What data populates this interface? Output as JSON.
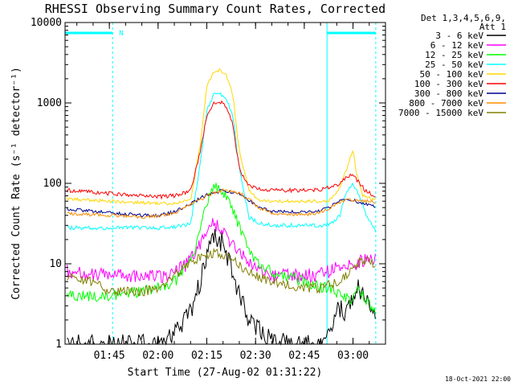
{
  "chart_data": {
    "type": "line",
    "title": "RHESSI Observing Summary Count Rates, Corrected",
    "xlabel": "Start Time (27-Aug-02 01:31:22)",
    "ylabel": "Corrected Count Rate (s⁻¹ detector⁻¹)",
    "x_unit": "UT time (HH:MM) on 27-Aug-02",
    "xlim": [
      "01:31:22",
      "03:10:00"
    ],
    "ylim": [
      1,
      10000
    ],
    "yscale": "log",
    "x_ticks": [
      "01:45",
      "02:00",
      "02:15",
      "02:30",
      "02:45",
      "03:00"
    ],
    "y_ticks": [
      {
        "value": 1,
        "label": "1"
      },
      {
        "value": 10,
        "label": "10"
      },
      {
        "value": 100,
        "label": "100"
      },
      {
        "value": 1000,
        "label": "1000"
      },
      {
        "value": 10000,
        "label": "10000"
      }
    ],
    "legend": {
      "placement": "right",
      "header": [
        "Det 1,3,4,5,6,9,",
        "Att 1"
      ]
    },
    "annotations": {
      "night_marker": "N",
      "timestamp": "18-Oct-2021 22:00",
      "data_gaps": [
        {
          "start": "01:31:22",
          "end": "01:46:00"
        },
        {
          "start": "02:52:00",
          "end": "03:07:00"
        }
      ]
    },
    "series": [
      {
        "name": "3 - 6 keV",
        "color": "#000000",
        "x": [
          "01:32",
          "01:45",
          "02:00",
          "02:05",
          "02:10",
          "02:13",
          "02:15",
          "02:16",
          "02:17",
          "02:20",
          "02:22",
          "02:25",
          "02:28",
          "02:31",
          "02:34",
          "02:40",
          "02:50",
          "02:53",
          "02:55",
          "02:58",
          "03:00",
          "03:02",
          "03:05",
          "03:07"
        ],
        "y": [
          1,
          1,
          1,
          1.4,
          2.5,
          6,
          14,
          20,
          22,
          18,
          10,
          4,
          2,
          1.5,
          1.2,
          1,
          1,
          1.4,
          3,
          2.5,
          4,
          5,
          3,
          2.5
        ]
      },
      {
        "name": "6 - 12 keV",
        "color": "#ff00ff",
        "x": [
          "01:32",
          "01:45",
          "01:55",
          "02:00",
          "02:05",
          "02:10",
          "02:13",
          "02:15",
          "02:16",
          "02:17",
          "02:19",
          "02:22",
          "02:25",
          "02:28",
          "02:31",
          "02:35",
          "02:45",
          "02:50",
          "02:53",
          "02:55",
          "03:00",
          "03:05",
          "03:07"
        ],
        "y": [
          8,
          7,
          7,
          7,
          7.5,
          11,
          18,
          26,
          30,
          32,
          28,
          20,
          14,
          10,
          8,
          7,
          7,
          7.5,
          8,
          9,
          10,
          11,
          11
        ]
      },
      {
        "name": "12 - 25 keV",
        "color": "#00ff00",
        "x": [
          "01:32",
          "01:45",
          "01:55",
          "02:00",
          "02:05",
          "02:08",
          "02:11",
          "02:13",
          "02:15",
          "02:17",
          "02:19",
          "02:22",
          "02:25",
          "02:28",
          "02:31",
          "02:35",
          "02:45",
          "02:50",
          "02:53",
          "02:56",
          "03:00",
          "03:02",
          "03:05",
          "03:07"
        ],
        "y": [
          4,
          4,
          4.5,
          5,
          6,
          8,
          14,
          30,
          60,
          90,
          85,
          60,
          30,
          15,
          10,
          8,
          6,
          5,
          5,
          4,
          3.5,
          5,
          3,
          2.5
        ]
      },
      {
        "name": "25 - 50 keV",
        "color": "#00ffff",
        "x": [
          "01:32",
          "01:45",
          "02:00",
          "02:05",
          "02:10",
          "02:13",
          "02:15",
          "02:17",
          "02:19",
          "02:21",
          "02:23",
          "02:25",
          "02:28",
          "02:31",
          "02:35",
          "02:45",
          "02:50",
          "02:53",
          "02:56",
          "02:58",
          "03:00",
          "03:02",
          "03:04",
          "03:07"
        ],
        "y": [
          28,
          28,
          28,
          29,
          31,
          180,
          800,
          1250,
          1300,
          1100,
          700,
          150,
          38,
          32,
          30,
          30,
          30,
          31,
          40,
          80,
          100,
          70,
          40,
          26
        ]
      },
      {
        "name": "50 - 100 keV",
        "color": "#ffd700",
        "x": [
          "01:32",
          "01:45",
          "02:00",
          "02:05",
          "02:10",
          "02:13",
          "02:15",
          "02:17",
          "02:19",
          "02:21",
          "02:23",
          "02:25",
          "02:28",
          "02:31",
          "02:35",
          "02:45",
          "02:50",
          "02:53",
          "02:56",
          "02:58",
          "03:00",
          "03:01",
          "03:03",
          "03:07"
        ],
        "y": [
          64,
          60,
          56,
          56,
          62,
          300,
          1600,
          2400,
          2600,
          2200,
          1300,
          250,
          80,
          62,
          60,
          60,
          60,
          62,
          90,
          150,
          260,
          140,
          70,
          62
        ]
      },
      {
        "name": "100 - 300 keV",
        "color": "#ff0000",
        "x": [
          "01:32",
          "01:45",
          "02:00",
          "02:05",
          "02:10",
          "02:13",
          "02:15",
          "02:17",
          "02:19",
          "02:21",
          "02:23",
          "02:25",
          "02:28",
          "02:31",
          "02:35",
          "02:45",
          "02:50",
          "02:53",
          "02:56",
          "02:58",
          "03:00",
          "03:02",
          "03:04",
          "03:07"
        ],
        "y": [
          82,
          75,
          68,
          70,
          80,
          250,
          700,
          1000,
          1050,
          900,
          550,
          150,
          95,
          85,
          82,
          82,
          84,
          90,
          100,
          120,
          130,
          100,
          80,
          68
        ]
      },
      {
        "name": "300 - 800 keV",
        "color": "#00008b",
        "x": [
          "01:32",
          "01:45",
          "01:55",
          "02:00",
          "02:05",
          "02:10",
          "02:15",
          "02:20",
          "02:25",
          "02:28",
          "02:31",
          "02:35",
          "02:40",
          "02:45",
          "02:50",
          "02:53",
          "02:56",
          "02:58",
          "03:00",
          "03:02",
          "03:05",
          "03:07"
        ],
        "y": [
          48,
          43,
          40,
          40,
          44,
          56,
          72,
          82,
          74,
          62,
          50,
          45,
          44,
          44,
          46,
          52,
          60,
          64,
          62,
          58,
          55,
          52
        ]
      },
      {
        "name": "800 - 7000 keV",
        "color": "#ff8c00",
        "x": [
          "01:32",
          "01:45",
          "01:55",
          "02:00",
          "02:05",
          "02:10",
          "02:15",
          "02:20",
          "02:25",
          "02:28",
          "02:31",
          "02:35",
          "02:40",
          "02:45",
          "02:50",
          "02:53",
          "02:56",
          "02:58",
          "03:00",
          "03:02",
          "03:05",
          "03:07"
        ],
        "y": [
          42,
          40,
          38,
          39,
          43,
          54,
          70,
          82,
          76,
          64,
          50,
          43,
          41,
          41,
          43,
          50,
          58,
          62,
          62,
          60,
          60,
          58
        ]
      },
      {
        "name": "7000 - 15000 keV",
        "color": "#808000",
        "x": [
          "01:32",
          "01:40",
          "01:45",
          "01:55",
          "02:00",
          "02:05",
          "02:10",
          "02:15",
          "02:18",
          "02:20",
          "02:23",
          "02:26",
          "02:30",
          "02:35",
          "02:45",
          "02:50",
          "02:53",
          "02:56",
          "03:00",
          "03:03",
          "03:07"
        ],
        "y": [
          7,
          6,
          4.5,
          4.5,
          5,
          7,
          10,
          13,
          14,
          13,
          11,
          9,
          7,
          6,
          5,
          5,
          5.5,
          6,
          9,
          11,
          10
        ]
      }
    ]
  }
}
